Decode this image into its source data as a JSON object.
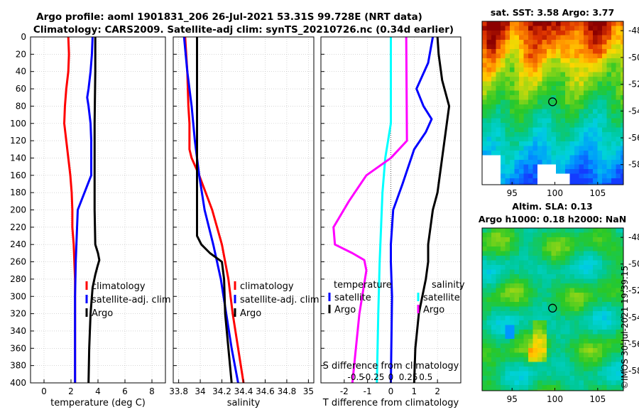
{
  "title": {
    "line1": "Argo profile: aoml 1901831_206 26-Jul-2021 53.31S 99.728E (NRT data)",
    "line2": "Climatology: CARS2009. Satellite-adj clim: synTS_20210726.nc (0.34d earlier)"
  },
  "watermark": "©IMOS 30-Jul-2021 19:39:15",
  "colors": {
    "climatology": "#ff0000",
    "satellite": "#0000ff",
    "argo": "#000000",
    "sat_s": "#00ffff",
    "argo_s": "#ff00ff"
  },
  "chart_data": [
    {
      "type": "line",
      "panel": "temperature",
      "xlabel": "temperature (deg C)",
      "ylabel": "",
      "xlim": [
        -1,
        9
      ],
      "ylim": [
        400,
        0
      ],
      "xticks": [
        "0",
        "2",
        "4",
        "6",
        "8"
      ],
      "xtick_values": [
        0,
        2,
        4,
        6,
        8
      ],
      "yticks": [
        "0",
        "20",
        "40",
        "60",
        "80",
        "100",
        "120",
        "140",
        "160",
        "180",
        "200",
        "220",
        "240",
        "260",
        "280",
        "300",
        "320",
        "340",
        "360",
        "380",
        "400"
      ],
      "grid": true,
      "legend": "right",
      "series": [
        {
          "name": "climatology",
          "color": "#ff0000",
          "depth": [
            0,
            20,
            40,
            60,
            80,
            100,
            120,
            140,
            160,
            180,
            200,
            220,
            240,
            260,
            280,
            300,
            340,
            400
          ],
          "values": [
            1.8,
            1.85,
            1.8,
            1.65,
            1.55,
            1.5,
            1.65,
            1.8,
            1.95,
            2.05,
            2.1,
            2.1,
            2.2,
            2.25,
            2.3,
            2.3,
            2.3,
            2.3
          ]
        },
        {
          "name": "satellite-adj. clim",
          "color": "#0000ff",
          "depth": [
            0,
            20,
            40,
            60,
            70,
            80,
            100,
            120,
            160,
            200,
            260,
            300,
            340,
            400
          ],
          "values": [
            3.6,
            3.55,
            3.45,
            3.3,
            3.2,
            3.3,
            3.45,
            3.5,
            3.5,
            2.5,
            2.35,
            2.3,
            2.3,
            2.3
          ]
        },
        {
          "name": "Argo",
          "color": "#000000",
          "depth": [
            0,
            40,
            100,
            150,
            200,
            240,
            250,
            258,
            266,
            275,
            290,
            320,
            360,
            400
          ],
          "values": [
            3.8,
            3.8,
            3.75,
            3.75,
            3.75,
            3.8,
            4.0,
            4.1,
            3.95,
            3.8,
            3.6,
            3.45,
            3.35,
            3.3
          ]
        }
      ]
    },
    {
      "type": "line",
      "panel": "salinity",
      "xlabel": "salinity",
      "ylabel": "",
      "xlim": [
        33.75,
        35.05
      ],
      "ylim": [
        400,
        0
      ],
      "xticks": [
        "33.8",
        "34",
        "34.2",
        "34.4",
        "34.6",
        "34.8",
        "35"
      ],
      "xtick_values": [
        33.8,
        34.0,
        34.2,
        34.4,
        34.6,
        34.8,
        35.0
      ],
      "grid": true,
      "legend": "right",
      "series": [
        {
          "name": "climatology",
          "color": "#ff0000",
          "depth": [
            0,
            40,
            80,
            100,
            130,
            140,
            160,
            200,
            240,
            280,
            320,
            360,
            400
          ],
          "values": [
            33.86,
            33.88,
            33.89,
            33.9,
            33.9,
            33.92,
            33.99,
            34.11,
            34.2,
            34.26,
            34.3,
            34.35,
            34.4
          ]
        },
        {
          "name": "satellite-adj. clim",
          "color": "#0000ff",
          "depth": [
            0,
            40,
            80,
            120,
            160,
            200,
            240,
            280,
            320,
            360,
            400
          ],
          "values": [
            33.85,
            33.88,
            33.92,
            33.95,
            33.99,
            34.04,
            34.12,
            34.19,
            34.24,
            34.29,
            34.35
          ]
        },
        {
          "name": "Argo",
          "color": "#000000",
          "depth": [
            0,
            60,
            100,
            140,
            200,
            230,
            240,
            250,
            260,
            280,
            320,
            360,
            400
          ],
          "values": [
            33.97,
            33.97,
            33.97,
            33.97,
            33.97,
            33.97,
            34.01,
            34.09,
            34.2,
            34.22,
            34.23,
            34.26,
            34.29
          ]
        }
      ]
    },
    {
      "type": "line",
      "panel": "difference",
      "xlabel": "T difference from climatology",
      "xlabel_top": "S difference from climatology",
      "xlim": [
        -3,
        3
      ],
      "ylim": [
        400,
        0
      ],
      "xticks": [
        "-2",
        "-1",
        "0",
        "1",
        "2"
      ],
      "xtick_values": [
        -2,
        -1,
        0,
        1,
        2
      ],
      "xticks_s": [
        "-0.5",
        "-0.25",
        "0",
        "0.25",
        "0.5"
      ],
      "xtick_values_s": [
        -1.5,
        -0.75,
        0,
        0.75,
        1.5
      ],
      "grid": true,
      "legend_titles": [
        "temperature",
        "salinity"
      ],
      "series": [
        {
          "name": "satellite",
          "kind": "T",
          "color": "#0000ff",
          "depth": [
            0,
            30,
            60,
            80,
            95,
            110,
            130,
            170,
            200,
            240,
            260,
            300,
            400
          ],
          "values": [
            1.8,
            1.6,
            1.1,
            1.4,
            1.75,
            1.5,
            1.0,
            0.5,
            0.1,
            0.0,
            0.0,
            0.05,
            0.0
          ]
        },
        {
          "name": "Argo",
          "kind": "T",
          "color": "#000000",
          "depth": [
            0,
            20,
            50,
            80,
            100,
            140,
            180,
            200,
            220,
            240,
            260,
            280,
            320,
            360,
            400
          ],
          "values": [
            2.0,
            2.05,
            2.2,
            2.5,
            2.4,
            2.2,
            2.0,
            1.8,
            1.7,
            1.6,
            1.6,
            1.5,
            1.2,
            1.05,
            1.0
          ]
        },
        {
          "name": "satellite",
          "kind": "S",
          "color": "#00ffff",
          "depth": [
            0,
            100,
            140,
            180,
            220,
            260,
            320,
            400
          ],
          "values": [
            0.0,
            0.0,
            -0.08,
            -0.12,
            -0.14,
            -0.16,
            -0.18,
            -0.2
          ]
        },
        {
          "name": "Argo",
          "kind": "S",
          "color": "#ff00ff",
          "depth": [
            0,
            120,
            140,
            160,
            190,
            220,
            240,
            250,
            258,
            270,
            320,
            400
          ],
          "values": [
            0.22,
            0.23,
            0.0,
            -0.35,
            -0.6,
            -0.82,
            -0.8,
            -0.55,
            -0.38,
            -0.35,
            -0.45,
            -0.55
          ]
        }
      ]
    },
    {
      "type": "heatmap",
      "panel": "sst",
      "title": "sat. SST: 3.58 Argo: 3.77",
      "xlim": [
        91.5,
        108
      ],
      "ylim": [
        -59.5,
        -47.3
      ],
      "xticks": [
        "95",
        "100",
        "105"
      ],
      "xtick_values": [
        95,
        100,
        105
      ],
      "yticks": [
        "-48",
        "-50",
        "-52",
        "-54",
        "-56",
        "-58"
      ],
      "ytick_values": [
        -48,
        -50,
        -52,
        -54,
        -56,
        -58
      ],
      "marker": {
        "lon": 99.728,
        "lat": -53.31
      }
    },
    {
      "type": "heatmap",
      "panel": "sla",
      "title_line1": "Altim. SLA: 0.13",
      "title_line2": "Argo h1000: 0.18 h2000: NaN",
      "xlim": [
        91.5,
        108
      ],
      "ylim": [
        -59.5,
        -47.3
      ],
      "xticks": [
        "95",
        "100",
        "105"
      ],
      "xtick_values": [
        95,
        100,
        105
      ],
      "yticks": [
        "-48",
        "-50",
        "-52",
        "-54",
        "-56",
        "-58"
      ],
      "ytick_values": [
        -48,
        -50,
        -52,
        -54,
        -56,
        -58
      ],
      "marker": {
        "lon": 99.728,
        "lat": -53.31
      }
    }
  ]
}
